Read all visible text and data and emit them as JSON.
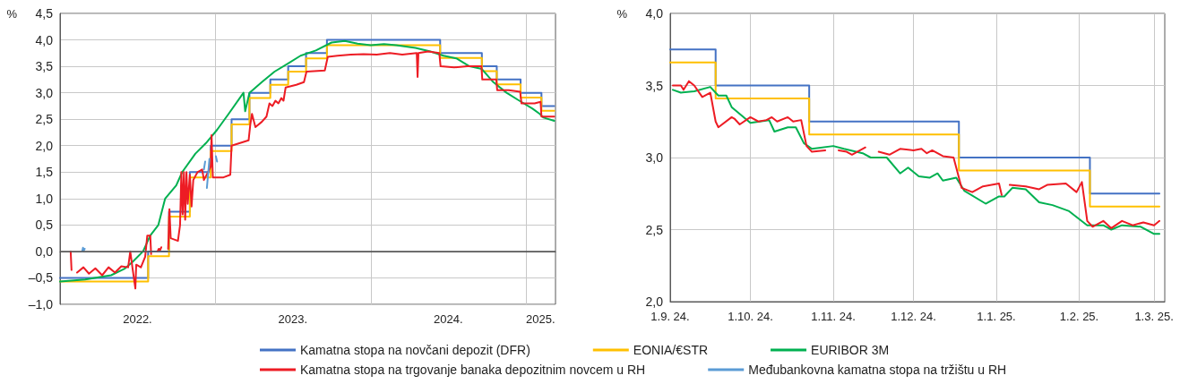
{
  "chart_data": [
    {
      "type": "line",
      "ylabel": "%",
      "legend": "bottom",
      "grid": true,
      "xlim": [
        "2022-01-01",
        "2025-03-10"
      ],
      "xticks": [
        {
          "value": "2022-07-02",
          "label": "2022."
        },
        {
          "value": "2023-01-01",
          "label": null
        },
        {
          "value": "2023-07-02",
          "label": "2023."
        },
        {
          "value": "2024-01-01",
          "label": null
        },
        {
          "value": "2024-07-01",
          "label": "2024."
        },
        {
          "value": "2025-01-01",
          "label": null
        },
        {
          "value": "2025-02-03",
          "label": "2025."
        }
      ],
      "ylim": [
        -1,
        4.5
      ],
      "yticks": [
        {
          "value": -1,
          "label": "–1,0"
        },
        {
          "value": -0.5,
          "label": "–0,5"
        },
        {
          "value": 0,
          "label": "0,0"
        },
        {
          "value": 0.5,
          "label": "0,5"
        },
        {
          "value": 1,
          "label": "1,0"
        },
        {
          "value": 1.5,
          "label": "1,5"
        },
        {
          "value": 2,
          "label": "2,0"
        },
        {
          "value": 2.5,
          "label": "2,5"
        },
        {
          "value": 3,
          "label": "3,0"
        },
        {
          "value": 3.5,
          "label": "3,5"
        },
        {
          "value": 4,
          "label": "4,0"
        },
        {
          "value": 4.5,
          "label": "4,5"
        }
      ],
      "ref_lines": [
        {
          "axis": "y",
          "value": 0,
          "color": "#595959"
        }
      ],
      "series": [
        {
          "name": "Kamatna stopa na novčani depozit (DFR)",
          "type": "step",
          "color": "#4472c4",
          "x": [
            "2022-01-01",
            "2022-07-27",
            "2022-09-14",
            "2022-11-02",
            "2022-12-21",
            "2023-02-08",
            "2023-03-22",
            "2023-05-10",
            "2023-06-21",
            "2023-08-02",
            "2023-09-20",
            "2024-06-12",
            "2024-09-18",
            "2024-10-23",
            "2024-12-18",
            "2025-02-05",
            "2025-03-07"
          ],
          "values": [
            -0.5,
            0,
            0.75,
            1.5,
            2,
            2.5,
            3,
            3.25,
            3.5,
            3.75,
            4,
            3.75,
            3.5,
            3.25,
            3,
            2.75,
            2.75
          ]
        },
        {
          "name": "EONIA/€STR",
          "type": "step",
          "color": "#ffc000",
          "x": [
            "2022-01-01",
            "2022-07-27",
            "2022-09-14",
            "2022-11-02",
            "2022-12-21",
            "2023-02-08",
            "2023-03-22",
            "2023-05-10",
            "2023-06-21",
            "2023-08-02",
            "2023-09-20",
            "2024-06-12",
            "2024-09-18",
            "2024-10-23",
            "2024-12-18",
            "2025-02-05",
            "2025-03-07"
          ],
          "values": [
            -0.57,
            -0.09,
            0.66,
            1.4,
            1.9,
            2.4,
            2.9,
            3.15,
            3.4,
            3.65,
            3.9,
            3.66,
            3.41,
            3.16,
            2.91,
            2.66,
            2.66
          ]
        },
        {
          "name": "EURIBOR 3M",
          "color": "#00b050",
          "x": [
            "2022-01-01",
            "2022-03-01",
            "2022-05-01",
            "2022-06-01",
            "2022-06-20",
            "2022-07-15",
            "2022-08-01",
            "2022-08-20",
            "2022-09-05",
            "2022-10-01",
            "2022-10-15",
            "2022-11-15",
            "2022-12-10",
            "2023-01-05",
            "2023-02-01",
            "2023-03-08",
            "2023-03-12",
            "2023-03-22",
            "2023-04-20",
            "2023-05-20",
            "2023-06-20",
            "2023-07-20",
            "2023-08-25",
            "2023-10-01",
            "2023-11-01",
            "2023-12-01",
            "2024-01-01",
            "2024-02-01",
            "2024-03-01",
            "2024-04-15",
            "2024-05-20",
            "2024-06-20",
            "2024-07-20",
            "2024-08-20",
            "2024-09-18",
            "2024-10-15",
            "2024-11-15",
            "2024-12-15",
            "2025-01-15",
            "2025-02-01",
            "2025-02-10",
            "2025-03-07"
          ],
          "values": [
            -0.57,
            -0.53,
            -0.45,
            -0.33,
            -0.2,
            0,
            0.3,
            0.5,
            1,
            1.25,
            1.5,
            1.85,
            2.05,
            2.3,
            2.6,
            3,
            2.65,
            3,
            3.2,
            3.4,
            3.55,
            3.7,
            3.8,
            3.95,
            3.98,
            3.93,
            3.9,
            3.92,
            3.9,
            3.85,
            3.78,
            3.7,
            3.65,
            3.5,
            3.45,
            3.2,
            3,
            2.85,
            2.7,
            2.6,
            2.53,
            2.47
          ]
        },
        {
          "name": "Kamatna stopa na trgovanje banaka depozitnim novcem u RH",
          "color": "#ed1c24",
          "x": [
            "2022-01-26",
            "2022-01-28",
            "2022-02-03",
            "2022-02-10",
            "2022-02-25",
            "2022-03-10",
            "2022-03-25",
            "2022-04-10",
            "2022-04-25",
            "2022-05-10",
            "2022-05-25",
            "2022-06-10",
            "2022-06-15",
            "2022-06-20",
            "2022-06-27",
            "2022-06-29",
            "2022-07-10",
            "2022-07-20",
            "2022-07-25",
            "2022-08-01",
            "2022-08-03",
            "2022-08-10",
            "2022-09-12",
            "2022-09-15",
            "2022-09-18",
            "2022-10-05",
            "2022-10-10",
            "2022-10-13",
            "2022-10-16",
            "2022-10-19",
            "2022-10-22",
            "2022-10-25",
            "2022-10-28",
            "2022-11-02",
            "2022-11-06",
            "2022-11-10",
            "2022-11-20",
            "2022-12-01",
            "2022-12-05",
            "2022-12-21",
            "2022-12-23",
            "2022-12-26",
            "2023-01-20",
            "2023-02-05",
            "2023-02-08",
            "2023-03-20",
            "2023-03-24",
            "2023-03-28",
            "2023-04-05",
            "2023-04-20",
            "2023-05-01",
            "2023-05-08",
            "2023-05-15",
            "2023-05-22",
            "2023-05-29",
            "2023-06-05",
            "2023-06-10",
            "2023-06-15",
            "2023-07-10",
            "2023-07-28",
            "2023-08-03",
            "2023-09-15",
            "2023-09-22",
            "2023-10-15",
            "2023-11-15",
            "2023-12-15",
            "2024-01-15",
            "2024-02-15",
            "2024-03-15",
            "2024-04-18",
            "2024-04-20",
            "2024-04-22",
            "2024-05-15",
            "2024-06-10",
            "2024-06-13",
            "2024-07-15",
            "2024-08-15",
            "2024-09-17",
            "2024-09-19",
            "2024-10-22",
            "2024-10-24",
            "2024-11-20",
            "2024-12-17",
            "2024-12-20",
            "2025-01-20",
            "2025-02-03",
            "2025-02-05",
            "2025-03-07"
          ],
          "values": [
            0,
            -0.35,
            null,
            -0.4,
            -0.3,
            -0.42,
            -0.32,
            -0.45,
            -0.3,
            -0.4,
            -0.28,
            -0.3,
            0,
            -0.3,
            -0.7,
            -0.25,
            -0.3,
            -0.1,
            0.3,
            0.3,
            -0.05,
            null,
            0.05,
            0.8,
            0.25,
            0.2,
            0.5,
            1.5,
            0.7,
            1.5,
            0.6,
            1.5,
            0.9,
            1.45,
            0.85,
            1.35,
            1.5,
            1.55,
            1.35,
            1.6,
            2.2,
            1.4,
            1.4,
            1.45,
            2,
            2.1,
            2.4,
            2.6,
            2.35,
            2.45,
            2.55,
            2.8,
            2.75,
            2.85,
            2.8,
            2.9,
            2.85,
            3.1,
            3.15,
            3.2,
            3.4,
            3.42,
            3.68,
            3.7,
            3.72,
            3.73,
            3.72,
            3.75,
            3.72,
            3.75,
            3.3,
            3.75,
            3.78,
            3.75,
            3.5,
            3.48,
            3.5,
            3.5,
            3.25,
            3.25,
            3.05,
            3.05,
            3.02,
            2.8,
            2.8,
            2.83,
            2.55,
            2.55
          ]
        },
        {
          "name": "Međubankovna kamatna stopa na tržištu u RH",
          "color": "#5b9bd5",
          "x": [
            "2022-12-05",
            "2022-12-08",
            "2022-12-10",
            "2022-12-12",
            "2022-12-18",
            "2022-12-20",
            "2023-01-02",
            "2023-01-05"
          ],
          "values": [
            1.55,
            1.7,
            null,
            1.2,
            1.75,
            null,
            1.8,
            1.7
          ]
        },
        {
          "color": "#ed1c24",
          "x": [
            "2022-08-18",
            "2022-08-21",
            "2022-08-24",
            "2022-08-27"
          ],
          "values": [
            0,
            0.05,
            0.02,
            0.08
          ]
        },
        {
          "color": "#5b9bd5",
          "x": [
            "2022-02-22",
            "2022-02-24",
            "2022-02-26",
            "2022-02-28"
          ],
          "values": [
            0,
            0.07,
            0.02,
            0.05
          ]
        }
      ]
    },
    {
      "type": "line",
      "ylabel": "%",
      "grid": true,
      "xlim": [
        "2024-09-01",
        "2025-03-05"
      ],
      "xticks": [
        {
          "value": "2024-09-01",
          "label": "1.9. 24."
        },
        {
          "value": "2024-10-01",
          "label": "1.10. 24."
        },
        {
          "value": "2024-11-01",
          "label": "1.11. 24."
        },
        {
          "value": "2024-12-01",
          "label": "1.12. 24."
        },
        {
          "value": "2025-01-01",
          "label": "1.1. 25."
        },
        {
          "value": "2025-02-01",
          "label": "1.2. 25."
        },
        {
          "value": "2025-03-01",
          "label": "1.3. 25."
        }
      ],
      "ylim": [
        2,
        4
      ],
      "yticks": [
        {
          "value": 2,
          "label": "2,0"
        },
        {
          "value": 2.5,
          "label": "2,5"
        },
        {
          "value": 3,
          "label": "3,0"
        },
        {
          "value": 3.5,
          "label": "3,5"
        },
        {
          "value": 4,
          "label": "4,0"
        }
      ],
      "series": [
        {
          "type": "step",
          "color": "#4472c4",
          "x": [
            "2024-09-01",
            "2024-09-18",
            "2024-10-23",
            "2024-12-18",
            "2025-02-05",
            "2025-03-03"
          ],
          "values": [
            3.75,
            3.5,
            3.25,
            3,
            2.75,
            2.75
          ]
        },
        {
          "type": "step",
          "color": "#ffc000",
          "x": [
            "2024-09-01",
            "2024-09-18",
            "2024-10-23",
            "2024-12-18",
            "2025-02-05",
            "2025-03-03"
          ],
          "values": [
            3.66,
            3.41,
            3.16,
            2.91,
            2.66,
            2.66
          ]
        },
        {
          "color": "#00b050",
          "x": [
            "2024-09-02",
            "2024-09-05",
            "2024-09-10",
            "2024-09-16",
            "2024-09-19",
            "2024-09-22",
            "2024-09-24",
            "2024-10-01",
            "2024-10-08",
            "2024-10-10",
            "2024-10-15",
            "2024-10-18",
            "2024-10-21",
            "2024-10-24",
            "2024-11-01",
            "2024-11-05",
            "2024-11-12",
            "2024-11-15",
            "2024-11-21",
            "2024-11-26",
            "2024-11-29",
            "2024-12-03",
            "2024-12-07",
            "2024-12-10",
            "2024-12-12",
            "2024-12-17",
            "2024-12-20",
            "2024-12-28",
            "2025-01-02",
            "2025-01-04",
            "2025-01-07",
            "2025-01-12",
            "2025-01-17",
            "2025-01-22",
            "2025-01-28",
            "2025-02-04",
            "2025-02-10",
            "2025-02-13",
            "2025-02-17",
            "2025-02-24",
            "2025-03-01",
            "2025-03-03"
          ],
          "values": [
            3.47,
            3.45,
            3.46,
            3.49,
            3.43,
            3.43,
            3.35,
            3.24,
            3.26,
            3.18,
            3.21,
            3.21,
            3.1,
            3.06,
            3.08,
            3.06,
            3.03,
            3,
            3,
            2.89,
            2.93,
            2.87,
            2.86,
            2.89,
            2.84,
            2.86,
            2.77,
            2.68,
            2.73,
            2.73,
            2.79,
            2.78,
            2.69,
            2.67,
            2.63,
            2.53,
            2.53,
            2.5,
            2.53,
            2.52,
            2.47,
            2.47
          ]
        },
        {
          "color": "#ed1c24",
          "x": [
            "2024-09-02",
            "2024-09-05",
            "2024-09-06",
            "2024-09-08",
            "2024-09-10",
            "2024-09-13",
            "2024-09-16",
            "2024-09-18",
            "2024-09-19",
            "2024-09-24",
            "2024-09-25",
            "2024-09-27",
            "2024-10-01",
            "2024-10-04",
            "2024-10-07",
            "2024-10-09",
            "2024-10-11",
            "2024-10-15",
            "2024-10-17",
            "2024-10-20",
            "2024-10-22",
            "2024-10-24",
            "2024-10-29",
            "2024-10-31",
            "2024-11-03",
            "2024-11-06",
            "2024-11-08",
            "2024-11-13",
            "2024-11-15",
            "2024-11-18",
            "2024-11-22",
            "2024-11-26",
            "2024-12-01",
            "2024-12-04",
            "2024-12-06",
            "2024-12-08",
            "2024-12-12",
            "2024-12-16",
            "2024-12-19",
            "2024-12-23",
            "2024-12-27",
            "2025-01-02",
            "2025-01-03",
            "2025-01-05",
            "2025-01-06",
            "2025-01-12",
            "2025-01-17",
            "2025-01-20",
            "2025-01-27",
            "2025-01-31",
            "2025-02-02",
            "2025-02-04",
            "2025-02-06",
            "2025-02-10",
            "2025-02-13",
            "2025-02-17",
            "2025-02-21",
            "2025-02-25",
            "2025-03-01",
            "2025-03-03"
          ],
          "values": [
            3.5,
            3.5,
            3.47,
            3.53,
            3.5,
            3.42,
            3.45,
            3.25,
            3.21,
            3.28,
            3.27,
            3.23,
            3.28,
            3.25,
            3.26,
            3.28,
            3.25,
            3.28,
            3.25,
            3.26,
            3.08,
            3.04,
            3.05,
            null,
            3.05,
            3.04,
            3.02,
            3.07,
            null,
            3.04,
            3.02,
            3.06,
            3.05,
            3.06,
            3.03,
            3.05,
            3.01,
            3,
            2.79,
            2.76,
            2.8,
            2.82,
            2.74,
            null,
            2.81,
            2.8,
            2.78,
            2.81,
            2.82,
            2.76,
            2.83,
            2.56,
            2.52,
            2.56,
            2.51,
            2.56,
            2.53,
            2.55,
            2.53,
            2.56
          ]
        }
      ]
    }
  ]
}
